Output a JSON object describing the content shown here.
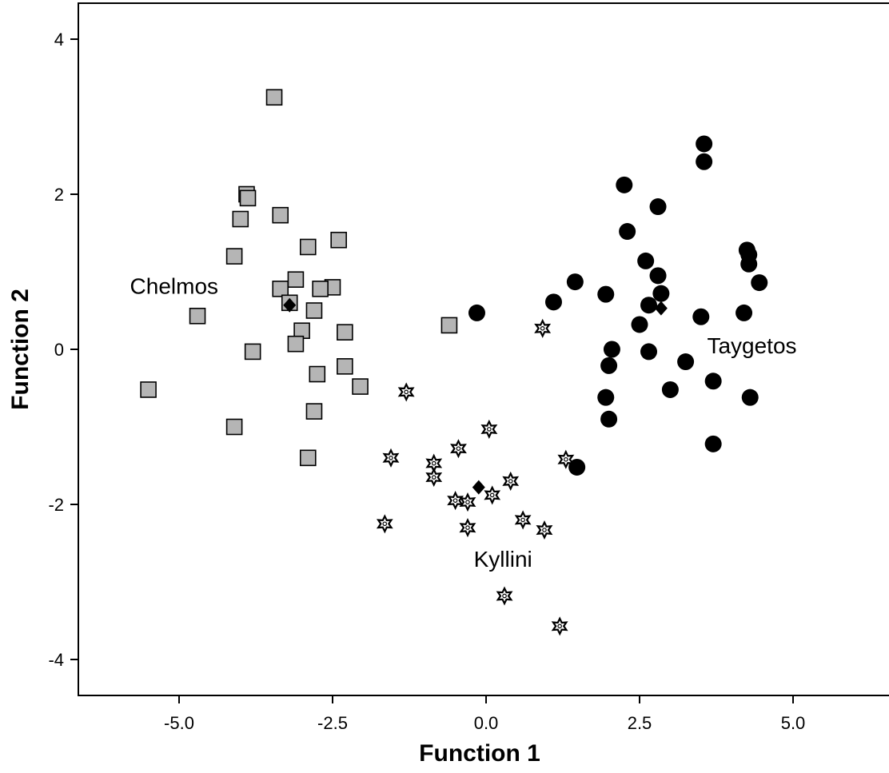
{
  "chart_data": {
    "type": "scatter",
    "title": "",
    "xlabel": "Function 1",
    "ylabel": "Function 2",
    "xlim": [
      -6.6,
      6.6
    ],
    "ylim": [
      -4.5,
      4.5
    ],
    "xticks": [
      -5.0,
      -2.5,
      0.0,
      2.5,
      5.0
    ],
    "xtick_labels": [
      "-5.0",
      "-2.5",
      "0.0",
      "2.5",
      "5.0"
    ],
    "yticks": [
      -4,
      -2,
      0,
      2,
      4
    ],
    "ytick_labels": [
      "-4",
      "-2",
      "0",
      "2",
      "4"
    ],
    "grid": false,
    "colors": {
      "square_fill": "#b5b5b5",
      "circle_fill": "#000000",
      "star_fill": "#ffffff",
      "centroid_fill": "#000000"
    },
    "series": [
      {
        "marker": "square",
        "points": [
          [
            -3.45,
            3.25
          ],
          [
            -3.9,
            2.0
          ],
          [
            -3.88,
            1.95
          ],
          [
            -4.0,
            1.68
          ],
          [
            -3.35,
            1.73
          ],
          [
            -2.4,
            1.41
          ],
          [
            -2.9,
            1.32
          ],
          [
            -4.1,
            1.2
          ],
          [
            -3.35,
            0.78
          ],
          [
            -3.1,
            0.9
          ],
          [
            -2.5,
            0.8
          ],
          [
            -2.7,
            0.78
          ],
          [
            -3.2,
            0.6
          ],
          [
            -4.7,
            0.43
          ],
          [
            -2.8,
            0.5
          ],
          [
            -0.6,
            0.31
          ],
          [
            -3.0,
            0.24
          ],
          [
            -2.3,
            0.22
          ],
          [
            -3.1,
            0.07
          ],
          [
            -3.8,
            -0.03
          ],
          [
            -2.3,
            -0.22
          ],
          [
            -2.75,
            -0.32
          ],
          [
            -2.05,
            -0.48
          ],
          [
            -5.5,
            -0.52
          ],
          [
            -2.8,
            -0.8
          ],
          [
            -4.1,
            -1.0
          ],
          [
            -2.9,
            -1.4
          ]
        ]
      },
      {
        "marker": "circle",
        "points": [
          [
            3.55,
            2.65
          ],
          [
            3.55,
            2.42
          ],
          [
            2.25,
            2.12
          ],
          [
            2.8,
            1.84
          ],
          [
            2.3,
            1.52
          ],
          [
            4.25,
            1.28
          ],
          [
            4.28,
            1.22
          ],
          [
            2.6,
            1.14
          ],
          [
            4.28,
            1.1
          ],
          [
            2.8,
            0.95
          ],
          [
            1.45,
            0.87
          ],
          [
            4.45,
            0.86
          ],
          [
            2.85,
            0.72
          ],
          [
            1.95,
            0.71
          ],
          [
            1.1,
            0.61
          ],
          [
            2.65,
            0.57
          ],
          [
            -0.15,
            0.47
          ],
          [
            4.2,
            0.47
          ],
          [
            3.5,
            0.42
          ],
          [
            2.5,
            0.32
          ],
          [
            2.05,
            0.0
          ],
          [
            2.65,
            -0.03
          ],
          [
            3.25,
            -0.16
          ],
          [
            2.0,
            -0.21
          ],
          [
            3.7,
            -0.41
          ],
          [
            3.0,
            -0.52
          ],
          [
            1.95,
            -0.62
          ],
          [
            4.3,
            -0.62
          ],
          [
            2.0,
            -0.9
          ],
          [
            3.7,
            -1.22
          ],
          [
            1.48,
            -1.52
          ]
        ]
      },
      {
        "marker": "star",
        "points": [
          [
            0.92,
            0.27
          ],
          [
            -1.3,
            -0.55
          ],
          [
            0.05,
            -1.03
          ],
          [
            -0.45,
            -1.28
          ],
          [
            -1.55,
            -1.4
          ],
          [
            1.3,
            -1.42
          ],
          [
            -0.85,
            -1.47
          ],
          [
            -0.85,
            -1.65
          ],
          [
            0.4,
            -1.7
          ],
          [
            0.1,
            -1.88
          ],
          [
            -0.5,
            -1.95
          ],
          [
            -0.3,
            -1.97
          ],
          [
            0.6,
            -2.2
          ],
          [
            -1.65,
            -2.25
          ],
          [
            -0.3,
            -2.3
          ],
          [
            0.95,
            -2.33
          ],
          [
            0.3,
            -3.18
          ],
          [
            1.2,
            -3.57
          ]
        ]
      },
      {
        "marker": "centroid",
        "points": [
          [
            -3.2,
            0.57
          ],
          [
            2.85,
            0.53
          ],
          [
            -0.12,
            -1.78
          ]
        ]
      }
    ],
    "annotations": [
      {
        "text": "Chelmos",
        "x": -5.8,
        "y": 0.82,
        "anchor": "start"
      },
      {
        "text": "Taygetos",
        "x": 3.6,
        "y": 0.05,
        "anchor": "start"
      },
      {
        "text": "Kyllini",
        "x": -0.2,
        "y": -2.7,
        "anchor": "start"
      }
    ]
  }
}
